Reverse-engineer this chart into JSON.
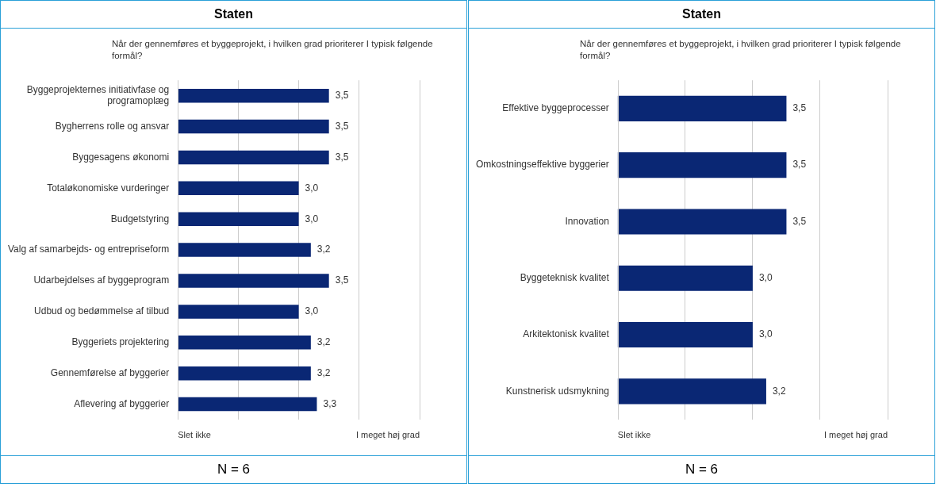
{
  "chart_data": [
    {
      "type": "bar",
      "orientation": "horizontal",
      "subtitle": "Staten",
      "title": "Når der gennemføres et byggeprojekt, i hvilken grad prioriterer I typisk følgende formål?",
      "categories": [
        "Byggeprojekternes initiativfase og programoplæg",
        "Bygherrens rolle og ansvar",
        "Byggesagens økonomi",
        "Totaløkonomiske vurderinger",
        "Budgetstyring",
        "Valg af samarbejds- og entrepriseform",
        "Udarbejdelses af byggeprogram",
        "Udbud og bedømmelse af tilbud",
        "Byggeriets projektering",
        "Gennemførelse af byggerier",
        "Aflevering af byggerier"
      ],
      "values": [
        3.5,
        3.5,
        3.5,
        3.0,
        3.0,
        3.2,
        3.5,
        3.0,
        3.2,
        3.2,
        3.3
      ],
      "value_labels": [
        "3,5",
        "3,5",
        "3,5",
        "3,0",
        "3,0",
        "3,2",
        "3,5",
        "3,0",
        "3,2",
        "3,2",
        "3,3"
      ],
      "color": "#0a2774",
      "xlim": [
        1,
        5
      ],
      "xticks": [
        {
          "value": 2,
          "label": null
        },
        {
          "value": 3,
          "label": null
        },
        {
          "value": 4,
          "label": null
        }
      ],
      "tick_labels": "y",
      "grid": "x",
      "annotations": [
        "Slet ikke",
        "I meget høj grad",
        "N = 6"
      ]
    },
    {
      "type": "bar",
      "orientation": "horizontal",
      "subtitle": "Staten",
      "title": "Når der gennemføres et byggeprojekt, i hvilken grad prioriterer I typisk følgende formål?",
      "categories": [
        "Effektive byggeprocesser",
        "Omkostningseffektive byggerier",
        "Innovation",
        "Byggeteknisk kvalitet",
        "Arkitektonisk kvalitet",
        "Kunstnerisk udsmykning"
      ],
      "values": [
        3.5,
        3.5,
        3.5,
        3.0,
        3.0,
        3.2
      ],
      "value_labels": [
        "3,5",
        "3,5",
        "3,5",
        "3,0",
        "3,0",
        "3,2"
      ],
      "color": "#0a2774",
      "xlim": [
        1,
        5
      ],
      "xticks": [
        {
          "value": 2,
          "label": null
        },
        {
          "value": 3,
          "label": null
        },
        {
          "value": 4,
          "label": null
        }
      ],
      "tick_labels": "y",
      "grid": "x",
      "annotations": [
        "Slet ikke",
        "I meget høj grad",
        "N = 6"
      ]
    }
  ]
}
